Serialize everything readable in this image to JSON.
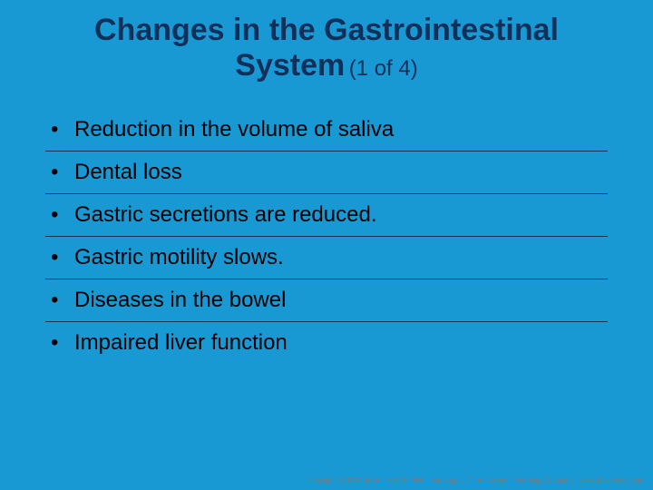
{
  "slide": {
    "background_color": "#1999d4",
    "title": {
      "main": "Changes in the Gastrointestinal System",
      "counter": "(1 of 4)",
      "color": "#10305a",
      "main_fontsize": 34,
      "counter_fontsize": 24,
      "font_weight_main": "bold",
      "font_weight_counter": "normal"
    },
    "bullets": {
      "marker": "•",
      "text_color": "#000000",
      "fontsize": 24,
      "separator_color": "#10305a",
      "items": [
        "Reduction in the volume of saliva",
        "Dental loss",
        "Gastric secretions are reduced.",
        "Gastric motility slows.",
        "Diseases in the bowel",
        "Impaired liver function"
      ]
    },
    "footer": {
      "text": "Copyright © 2017 by Jones & Bartlett Learning, LLC, an Ascend Learning Company | www.jblearning.com",
      "color": "#7a7a7a",
      "fontsize": 8
    }
  }
}
